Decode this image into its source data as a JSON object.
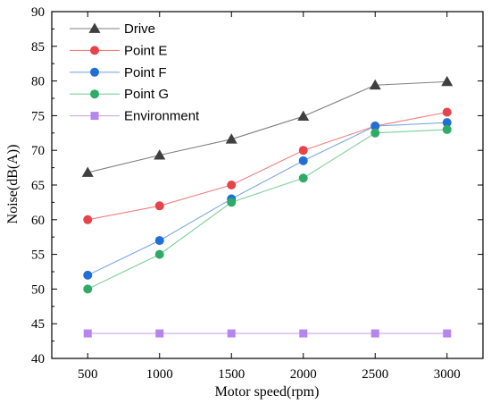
{
  "chart_data": {
    "type": "line",
    "xlabel": "Motor speed(rpm)",
    "ylabel": "Noise(dB(A))",
    "x": [
      500,
      1000,
      1500,
      2000,
      2500,
      3000
    ],
    "xlim": [
      250,
      3250
    ],
    "ylim": [
      40,
      90
    ],
    "xticks": [
      500,
      1000,
      1500,
      2000,
      2500,
      3000
    ],
    "yticks": [
      40,
      45,
      50,
      55,
      60,
      65,
      70,
      75,
      80,
      85,
      90
    ],
    "grid": false,
    "legend_position": "top-left",
    "series": [
      {
        "name": "Drive",
        "values": [
          66.8,
          69.3,
          71.6,
          74.9,
          79.4,
          79.9
        ],
        "color": "#808080",
        "marker": "triangle",
        "marker_color": "#3f3f3f"
      },
      {
        "name": "Point E",
        "values": [
          60,
          62,
          65,
          70,
          73.5,
          75.5
        ],
        "color": "#f08080",
        "marker": "circle",
        "marker_color": "#e8424a"
      },
      {
        "name": "Point F",
        "values": [
          52,
          57,
          63,
          68.5,
          73.5,
          74
        ],
        "color": "#7fa8e0",
        "marker": "circle",
        "marker_color": "#1f6fd6"
      },
      {
        "name": "Point G",
        "values": [
          50,
          55,
          62.5,
          66,
          72.5,
          73
        ],
        "color": "#7fcf9a",
        "marker": "circle",
        "marker_color": "#2eab66"
      },
      {
        "name": "Environment",
        "values": [
          43.6,
          43.6,
          43.6,
          43.6,
          43.6,
          43.6
        ],
        "color": "#c9a8f0",
        "marker": "square",
        "marker_color": "#b685ee"
      }
    ]
  }
}
